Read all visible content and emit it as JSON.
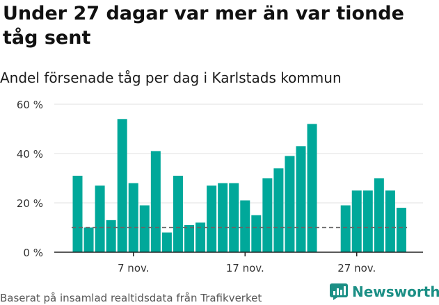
{
  "title": "Under 27 dagar var mer än var tionde tåg sent",
  "subtitle": "Andel försenade tåg per dag i Karlstads kommun",
  "source": "Baserat på insamlad realtidsdata från Trafikverket",
  "brand": {
    "name": "Newsworthy",
    "color": "#1b8f85"
  },
  "colors": {
    "bar": "#00a89a",
    "reference_line": "#666666",
    "grid": "#e0e0e0",
    "axis": "#222222"
  },
  "chart_data": {
    "type": "bar",
    "title": "Under 27 dagar var mer än var tionde tåg sent",
    "subtitle": "Andel försenade tåg per dag i Karlstads kommun",
    "xlabel": "",
    "ylabel": "",
    "x_ticks": [
      {
        "label": "7 nov.",
        "index": 5
      },
      {
        "label": "17 nov.",
        "index": 15
      },
      {
        "label": "27 nov.",
        "index": 25
      }
    ],
    "y_ticks": [
      0,
      20,
      40,
      60
    ],
    "y_tick_suffix": " %",
    "ylim": [
      0,
      60
    ],
    "grid": true,
    "reference_line": {
      "value": 10,
      "style": "dashed"
    },
    "values": [
      31,
      10,
      27,
      13,
      54,
      28,
      19,
      41,
      8,
      31,
      11,
      12,
      27,
      28,
      28,
      21,
      15,
      30,
      34,
      39,
      43,
      52,
      null,
      null,
      19,
      25,
      25,
      30,
      25,
      18
    ]
  }
}
